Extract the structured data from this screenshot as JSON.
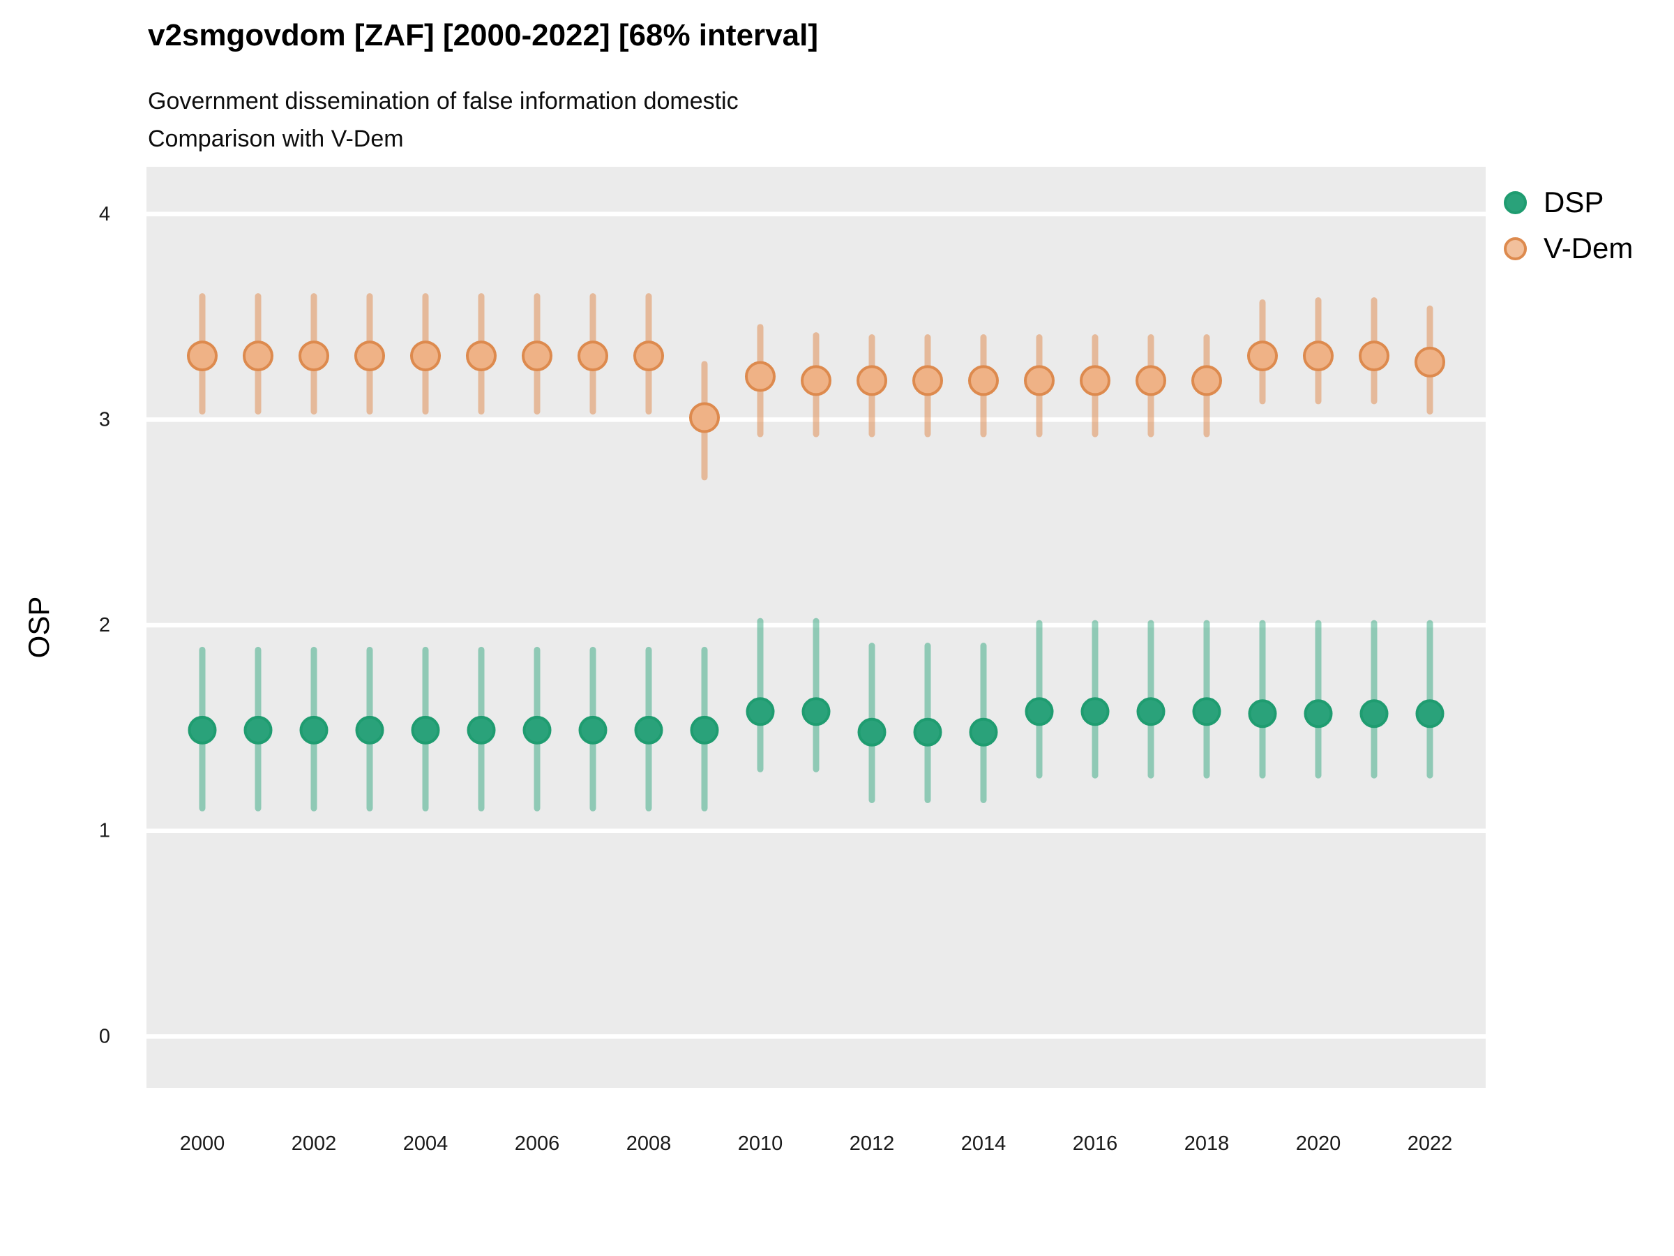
{
  "figure": {
    "title": "v2smgovdom [ZAF] [2000-2022] [68% interval]",
    "subtitle_line1": "Government dissemination of false information domestic",
    "subtitle_line2": "Comparison with V-Dem"
  },
  "legend": {
    "position": "right",
    "items": [
      {
        "label": "DSP",
        "marker": "circle-icon"
      },
      {
        "label": "V-Dem",
        "marker": "circle-icon"
      }
    ]
  },
  "colors": {
    "panel_background": "#ebebeb",
    "gridline": "#ffffff",
    "tick_text": "#1a1a1a",
    "title_text": "#000000",
    "dsp_point_fill": "#2aa27a",
    "dsp_point_stroke": "#1f9c70",
    "dsp_interval": "#2aa27a",
    "vdem_point_fill": "#efb286",
    "vdem_point_stroke": "#dd8a4e",
    "vdem_interval": "#e08c50",
    "vdem_legend_fill": "#f2c09c"
  },
  "chart_data": {
    "type": "scatter",
    "title": "v2smgovdom [ZAF] [2000-2022] [68% interval]",
    "subtitle": [
      "Government dissemination of false information domestic",
      "Comparison with V-Dem"
    ],
    "xlabel": "",
    "ylabel": "OSP",
    "interval": "68%",
    "grid": "horizontal major white lines on gray panel",
    "legend_position": "right",
    "xlim": [
      1999,
      2023
    ],
    "ylim": [
      -0.25,
      4.23
    ],
    "yticks": [
      0,
      1,
      2,
      3,
      4
    ],
    "xticks": [
      2000,
      2002,
      2004,
      2006,
      2008,
      2010,
      2012,
      2014,
      2016,
      2018,
      2020,
      2022
    ],
    "x": [
      2000,
      2001,
      2002,
      2003,
      2004,
      2005,
      2006,
      2007,
      2008,
      2009,
      2010,
      2011,
      2012,
      2013,
      2014,
      2015,
      2016,
      2017,
      2018,
      2019,
      2020,
      2021,
      2022
    ],
    "series": [
      {
        "name": "DSP",
        "estimates": [
          1.49,
          1.49,
          1.49,
          1.49,
          1.49,
          1.49,
          1.49,
          1.49,
          1.49,
          1.49,
          1.58,
          1.58,
          1.48,
          1.48,
          1.48,
          1.58,
          1.58,
          1.58,
          1.58,
          1.57,
          1.57,
          1.57,
          1.57
        ],
        "lower": [
          1.11,
          1.11,
          1.11,
          1.11,
          1.11,
          1.11,
          1.11,
          1.11,
          1.11,
          1.11,
          1.3,
          1.3,
          1.15,
          1.15,
          1.15,
          1.27,
          1.27,
          1.27,
          1.27,
          1.27,
          1.27,
          1.27,
          1.27
        ],
        "upper": [
          1.88,
          1.88,
          1.88,
          1.88,
          1.88,
          1.88,
          1.88,
          1.88,
          1.88,
          1.88,
          2.02,
          2.02,
          1.9,
          1.9,
          1.9,
          2.01,
          2.01,
          2.01,
          2.01,
          2.01,
          2.01,
          2.01,
          2.01
        ]
      },
      {
        "name": "V-Dem",
        "estimates": [
          3.31,
          3.31,
          3.31,
          3.31,
          3.31,
          3.31,
          3.31,
          3.31,
          3.31,
          3.01,
          3.21,
          3.19,
          3.19,
          3.19,
          3.19,
          3.19,
          3.19,
          3.19,
          3.19,
          3.31,
          3.31,
          3.31,
          3.28
        ],
        "lower": [
          3.04,
          3.04,
          3.04,
          3.04,
          3.04,
          3.04,
          3.04,
          3.04,
          3.04,
          2.72,
          2.93,
          2.93,
          2.93,
          2.93,
          2.93,
          2.93,
          2.93,
          2.93,
          2.93,
          3.09,
          3.09,
          3.09,
          3.04
        ],
        "upper": [
          3.6,
          3.6,
          3.6,
          3.6,
          3.6,
          3.6,
          3.6,
          3.6,
          3.6,
          3.27,
          3.45,
          3.41,
          3.4,
          3.4,
          3.4,
          3.4,
          3.4,
          3.4,
          3.4,
          3.57,
          3.58,
          3.58,
          3.54
        ]
      }
    ]
  }
}
